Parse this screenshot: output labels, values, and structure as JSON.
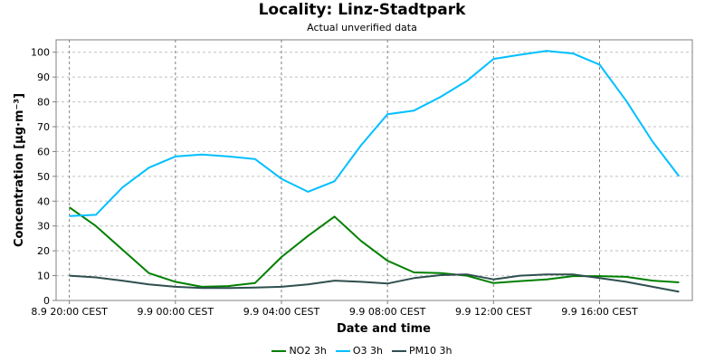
{
  "chart_data": {
    "type": "line",
    "title": "Locality: Linz-Stadtpark",
    "subtitle": "Actual unverified data",
    "xlabel": "Date and time",
    "ylabel": "Concentration [µg·m⁻³]",
    "ylim": [
      0,
      105
    ],
    "yticks": [
      0,
      10,
      20,
      30,
      40,
      50,
      60,
      70,
      80,
      90,
      100
    ],
    "xlim": [
      -0.5,
      23.5
    ],
    "xticks": [
      {
        "at": 0,
        "label": "8.9 20:00 CEST"
      },
      {
        "at": 4,
        "label": "9.9 00:00 CEST"
      },
      {
        "at": 8,
        "label": "9.9 04:00 CEST"
      },
      {
        "at": 12,
        "label": "9.9 08:00 CEST"
      },
      {
        "at": 16,
        "label": "9.9 12:00 CEST"
      },
      {
        "at": 20,
        "label": "9.9 16:00 CEST"
      }
    ],
    "grid": true,
    "legend_position": "bottom",
    "x": [
      0,
      1,
      2,
      3,
      4,
      5,
      6,
      7,
      8,
      9,
      10,
      11,
      12,
      13,
      14,
      15,
      16,
      17,
      18,
      19,
      20,
      21,
      22,
      23
    ],
    "series": [
      {
        "name": "NO2 3h",
        "color": "#008000",
        "values": [
          37.5,
          30,
          20.5,
          11,
          7.5,
          5.5,
          5.8,
          7,
          17.5,
          26,
          33.8,
          24,
          16,
          11.3,
          11,
          10,
          7,
          7.8,
          8.5,
          9.8,
          9.8,
          9.5,
          8,
          7.3
        ]
      },
      {
        "name": "O3 3h",
        "color": "#00bfff",
        "values": [
          34,
          34.5,
          45.5,
          53.5,
          58,
          58.8,
          58,
          57,
          49,
          43.8,
          48,
          62.5,
          75,
          76.5,
          82,
          88.5,
          97.3,
          99,
          100.5,
          99.5,
          95,
          80.5,
          64,
          50
        ]
      },
      {
        "name": "PM10 3h",
        "color": "#2f4f4f",
        "values": [
          10,
          9.3,
          8,
          6.5,
          5.5,
          5,
          5,
          5.2,
          5.5,
          6.5,
          8,
          7.5,
          6.8,
          9,
          10.2,
          10.5,
          8.5,
          10,
          10.5,
          10.5,
          9,
          7.5,
          5.5,
          3.5
        ]
      }
    ]
  }
}
